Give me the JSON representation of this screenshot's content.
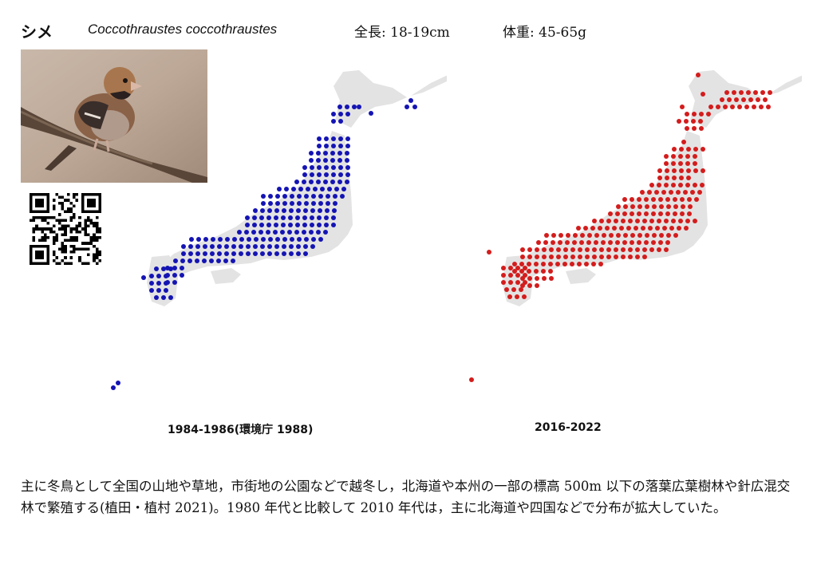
{
  "header": {
    "name_jp": "シメ",
    "name_sci": "Coccothraustes coccothraustes",
    "length": "全長: 18-19cm",
    "weight": "体重: 45-65g"
  },
  "maps": [
    {
      "label": "1984-1986(環境庁 1988)",
      "dot_color": "#1414b4"
    },
    {
      "label": "2016-2022",
      "dot_color": "#d41c1c"
    }
  ],
  "description": "主に冬鳥として全国の山地や草地，市街地の公園などで越冬し，北海道や本州の一部の標高 500m 以下の落葉広葉樹林や針広混交林で繁殖する(植田・植村 2021)。1980 年代と比較して 2010 年代は，主に北海道や四国などで分布が拡大していた。",
  "colors": {
    "land": "#e3e3e3",
    "text": "#111111"
  }
}
